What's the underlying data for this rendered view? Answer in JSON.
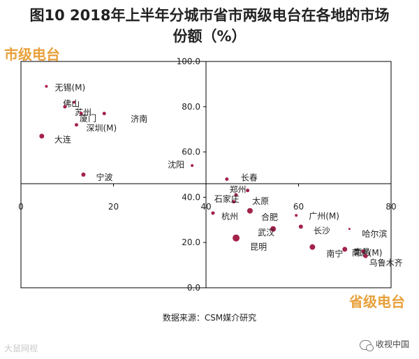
{
  "chart_data": {
    "type": "scatter",
    "title_line1": "图10 2018年上半年分城市省市两级电台在各地的市场",
    "title_line2": "份额（%）",
    "x_axis_label": "省级电台",
    "y_axis_label": "市级电台",
    "xlim": [
      0,
      80
    ],
    "ylim": [
      0,
      100
    ],
    "x_ticks": [
      "0",
      "20",
      "40",
      "60",
      "80"
    ],
    "y_ticks": [
      "0.0",
      "20.0",
      "40.0",
      "60.0",
      "80.0",
      "100.0"
    ],
    "crossing": {
      "x": 40,
      "y": 46
    },
    "point_color": "#a3224a",
    "points": [
      {
        "name": "无锡(M)",
        "x": 5.5,
        "y": 89,
        "r": 2
      },
      {
        "name": "佛山",
        "x": 11.5,
        "y": 82,
        "r": 2
      },
      {
        "name": "苏州",
        "x": 9.5,
        "y": 80,
        "r": 2.5
      },
      {
        "name": "厦门",
        "x": 13,
        "y": 77,
        "r": 2.5
      },
      {
        "name": "济南",
        "x": 18,
        "y": 77,
        "r": 2.5
      },
      {
        "name": "深圳(M)",
        "x": 12,
        "y": 72,
        "r": 2.5
      },
      {
        "name": "大连",
        "x": 4.5,
        "y": 67,
        "r": 3.5
      },
      {
        "name": "宁波",
        "x": 13.5,
        "y": 50,
        "r": 3
      },
      {
        "name": "沈阳",
        "x": 37,
        "y": 54,
        "r": 2
      },
      {
        "name": "长春",
        "x": 44.5,
        "y": 48,
        "r": 2.5
      },
      {
        "name": "郑州",
        "x": 49,
        "y": 43,
        "r": 2.5
      },
      {
        "name": "太原",
        "x": 46.5,
        "y": 41,
        "r": 2.5
      },
      {
        "name": "石家庄",
        "x": 46,
        "y": 38,
        "r": 2.5
      },
      {
        "name": "杭州",
        "x": 41.5,
        "y": 33,
        "r": 2.5
      },
      {
        "name": "合肥",
        "x": 49.5,
        "y": 34,
        "r": 4
      },
      {
        "name": "昆明",
        "x": 46.5,
        "y": 22,
        "r": 5
      },
      {
        "name": "武汉",
        "x": 54.5,
        "y": 26,
        "r": 4
      },
      {
        "name": "广州(M)",
        "x": 59.5,
        "y": 32,
        "r": 2
      },
      {
        "name": "长沙",
        "x": 60.5,
        "y": 27,
        "r": 3
      },
      {
        "name": "南宁",
        "x": 63,
        "y": 18,
        "r": 4
      },
      {
        "name": "哈尔滨",
        "x": 71,
        "y": 26,
        "r": 1.5
      },
      {
        "name": "南京(M)",
        "x": 70,
        "y": 17,
        "r": 3.5
      },
      {
        "name": "南昌",
        "x": 74,
        "y": 16,
        "r": 3
      },
      {
        "name": "乌鲁木齐",
        "x": 74.5,
        "y": 14,
        "r": 3
      }
    ]
  },
  "source": "数据来源：CSM媒介研究",
  "watermark_left": "大鼠网视",
  "watermark_right": "收视中国"
}
